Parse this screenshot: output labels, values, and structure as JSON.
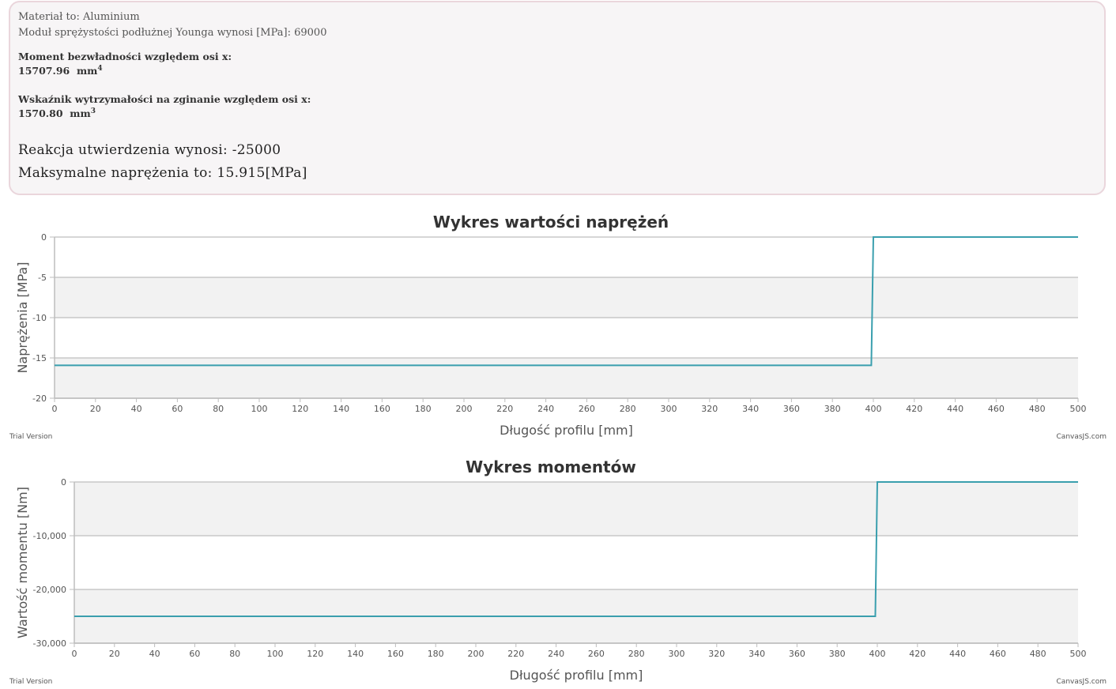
{
  "info": {
    "material": "Materiał to: Aluminium",
    "modulus": "Moduł sprężystości podłużnej Younga wynosi [MPa]: 69000",
    "inertia_label": "Moment bezwładności względem osi x:",
    "inertia_value": "15707.96",
    "inertia_unit": "mm",
    "inertia_exp": "4",
    "section_label": "Wskaźnik wytrzymałości na zginanie względem osi x:",
    "section_value": "1570.80",
    "section_unit": "mm",
    "section_exp": "3",
    "reaction": "Reakcja  utwierdzenia  wynosi:  -25000",
    "max_stress": "Maksymalne naprężenia to: 15.915[MPa]"
  },
  "footer": {
    "trial": "Trial Version",
    "brand": "CanvasJS.com"
  },
  "colors": {
    "line": "#3a9fae",
    "band": "#f2f2f2",
    "grid": "#c8c8c8",
    "axis": "#bdbdbd",
    "title": "#333333",
    "label": "#555555",
    "border": "#ead6dc"
  },
  "chart_data": [
    {
      "type": "line",
      "title": "Wykres wartości naprężeń",
      "xlabel": "Długość profilu [mm]",
      "ylabel": "Naprężenia [MPa]",
      "xlim": [
        0,
        500
      ],
      "ylim": [
        -20,
        0
      ],
      "x_ticks": [
        0,
        20,
        40,
        60,
        80,
        100,
        120,
        140,
        160,
        180,
        200,
        220,
        240,
        260,
        280,
        300,
        320,
        340,
        360,
        380,
        400,
        420,
        440,
        460,
        480,
        500
      ],
      "y_ticks": [
        0,
        -5,
        -10,
        -15,
        -20
      ],
      "y_tick_labels": [
        "0",
        "-5",
        "-10",
        "-15",
        "-20"
      ],
      "grid": true,
      "series": [
        {
          "x": [
            0,
            399,
            400,
            500
          ],
          "y": [
            -15.915,
            -15.915,
            0,
            0
          ]
        }
      ]
    },
    {
      "type": "line",
      "title": "Wykres momentów",
      "xlabel": "Długość profilu [mm]",
      "ylabel": "Wartość momentu [Nm]",
      "xlim": [
        0,
        500
      ],
      "ylim": [
        -30000,
        0
      ],
      "x_ticks": [
        0,
        20,
        40,
        60,
        80,
        100,
        120,
        140,
        160,
        180,
        200,
        220,
        240,
        260,
        280,
        300,
        320,
        340,
        360,
        380,
        400,
        420,
        440,
        460,
        480,
        500
      ],
      "y_ticks": [
        0,
        -10000,
        -20000,
        -30000
      ],
      "y_tick_labels": [
        "0",
        "-10,000",
        "-20,000",
        "-30,000"
      ],
      "grid": true,
      "series": [
        {
          "x": [
            0,
            399,
            400,
            500
          ],
          "y": [
            -25000,
            -25000,
            0,
            0
          ]
        }
      ]
    }
  ]
}
